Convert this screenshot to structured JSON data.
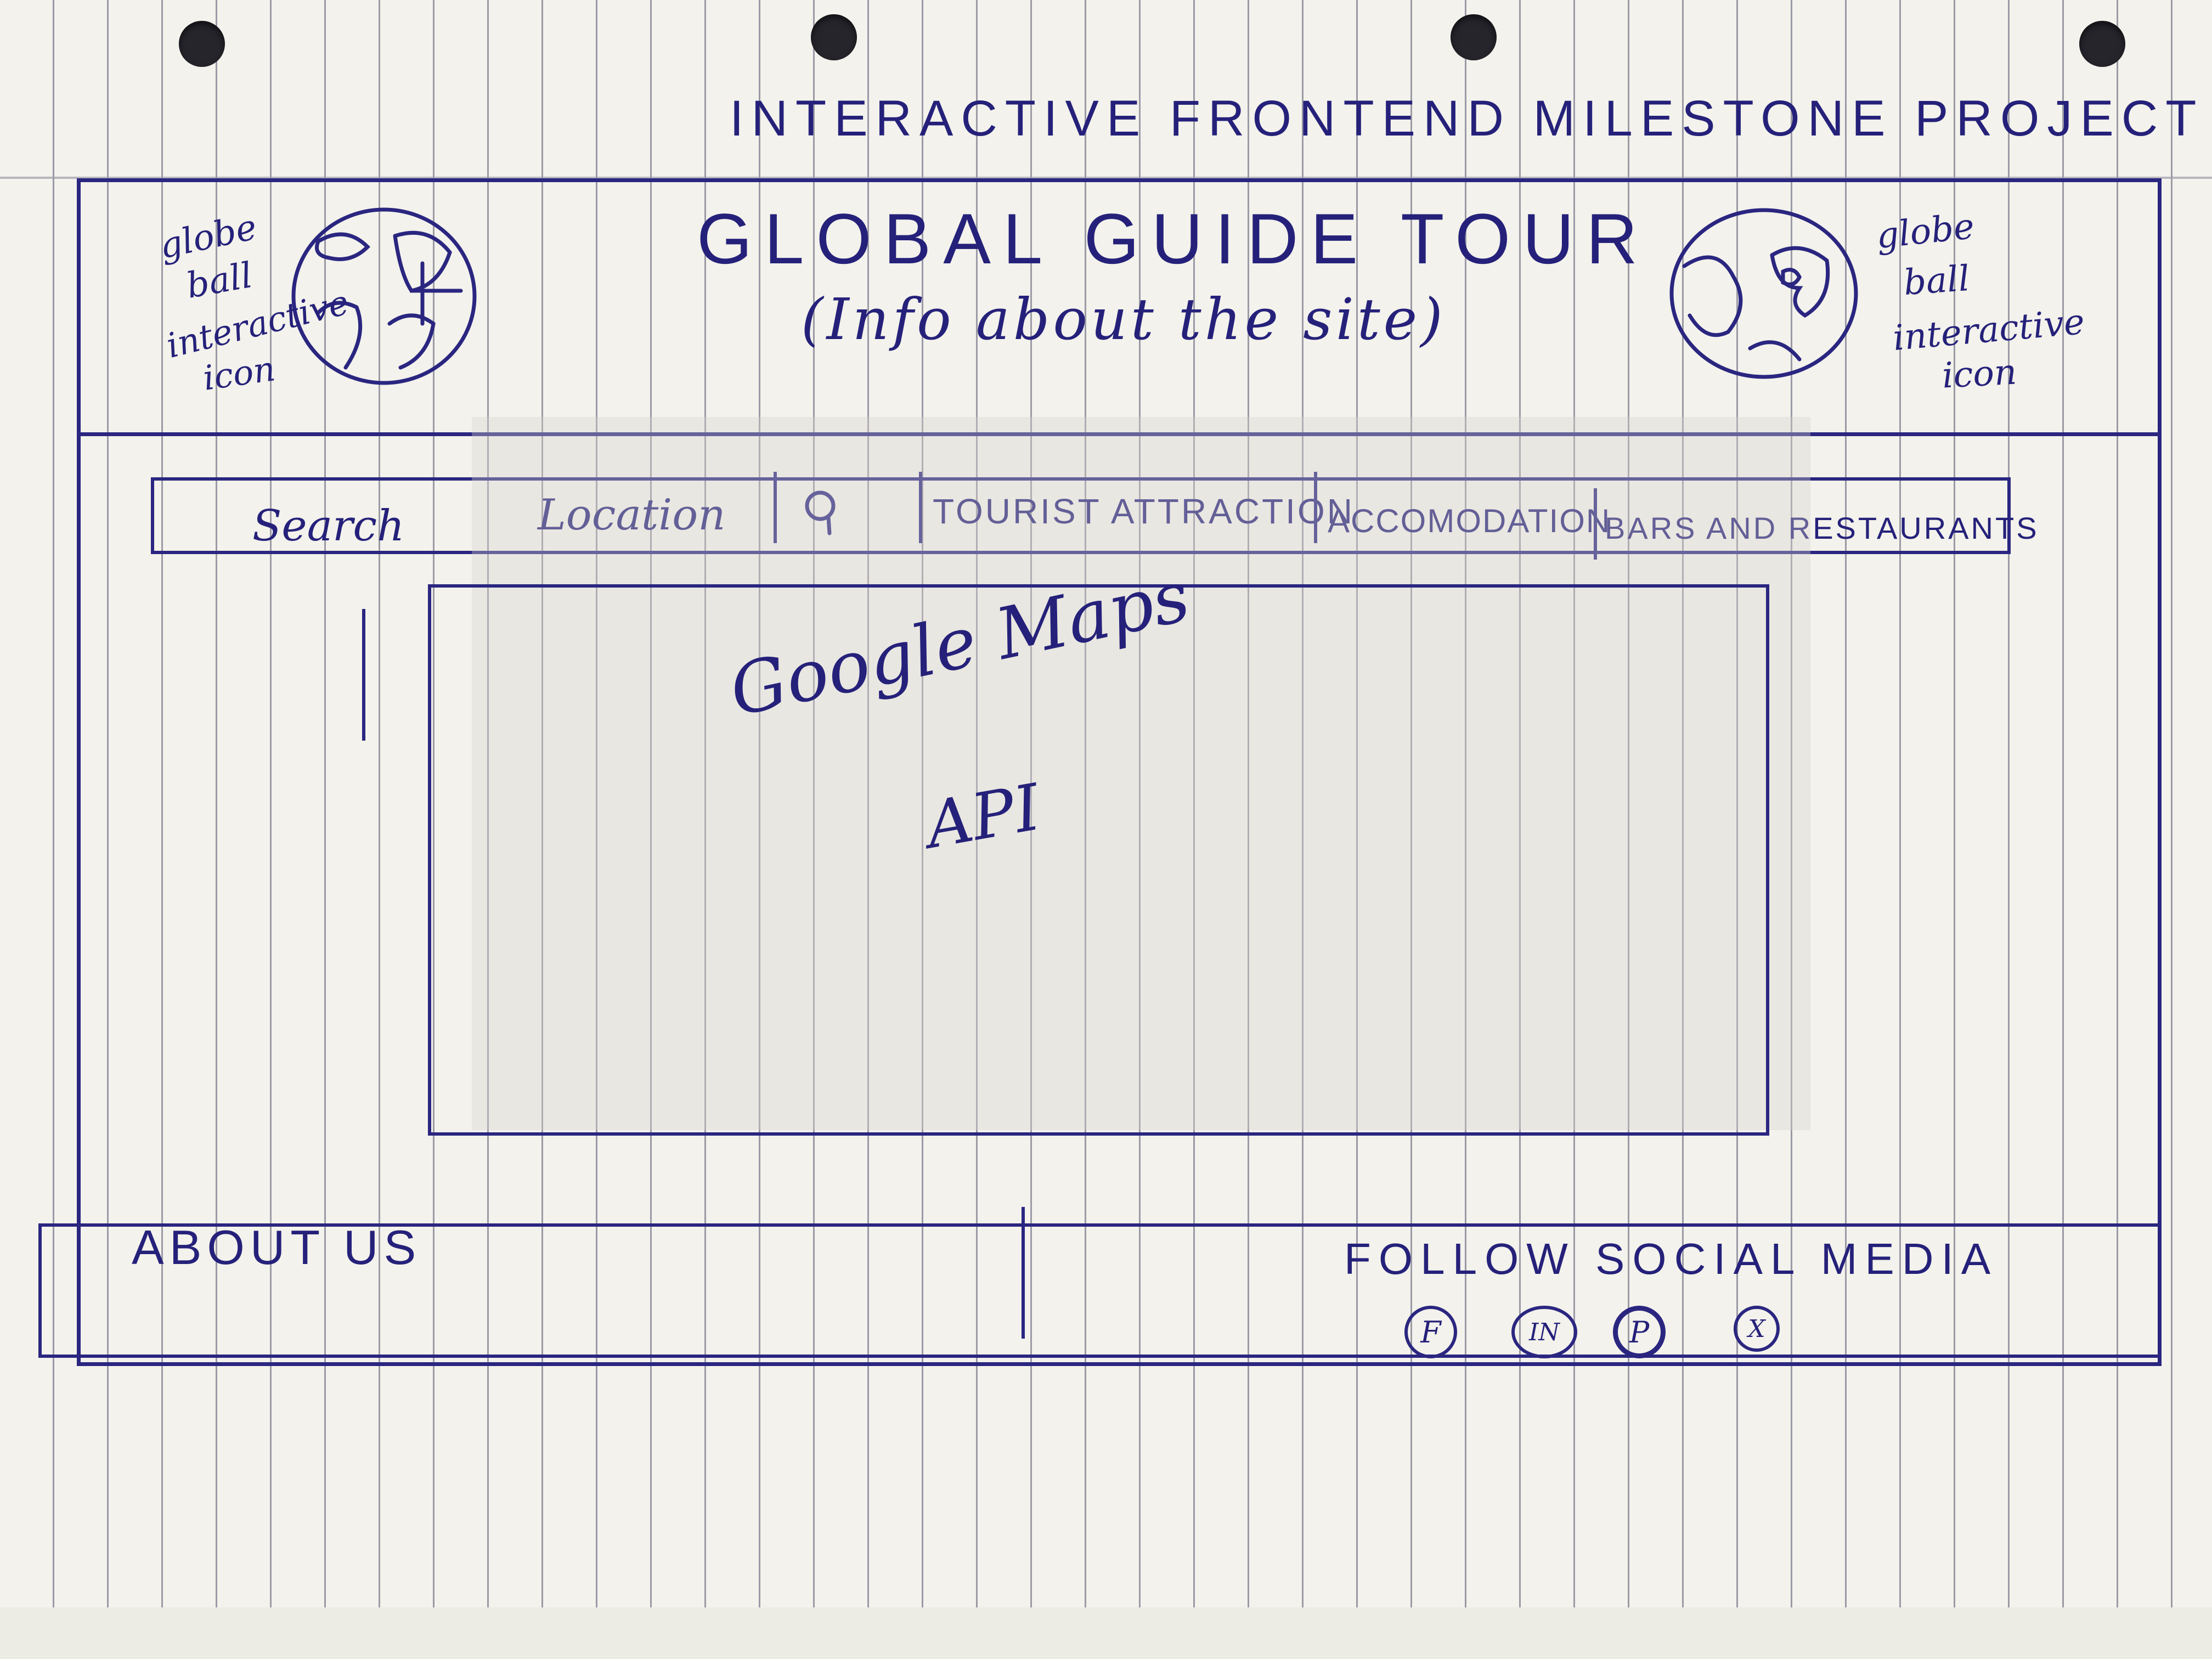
{
  "page_title": "INTERACTIVE FRONTEND MILESTONE PROJECT",
  "header": {
    "site_title": "GLOBAL GUIDE TOUR",
    "site_subtitle": "(Info about the site)",
    "left_globe_note": [
      "globe",
      "ball",
      "interactive",
      "icon"
    ],
    "right_globe_note": [
      "globe",
      "ball",
      "interactive",
      "icon"
    ],
    "globe_icon": "globe-icon"
  },
  "nav": {
    "search_label": "Search",
    "location_label": "Location",
    "search_icon": "magnifier-icon",
    "items": [
      {
        "label": "TOURIST ATTRACTION"
      },
      {
        "label": "ACCOMODATION"
      },
      {
        "label": "BARS AND RESTAURANTS"
      }
    ]
  },
  "map": {
    "line1": "Google Maps",
    "line2": "API"
  },
  "footer": {
    "about_label": "ABOUT US",
    "follow_label": "FOLLOW SOCIAL MEDIA",
    "social_icons": [
      {
        "name": "facebook-icon",
        "glyph": "F"
      },
      {
        "name": "linkedin-icon",
        "glyph": "IN"
      },
      {
        "name": "pinterest-icon",
        "glyph": "P"
      },
      {
        "name": "x-icon",
        "glyph": "X"
      }
    ]
  },
  "colors": {
    "ink": "#2a2680",
    "paper": "#f3f2ec"
  }
}
